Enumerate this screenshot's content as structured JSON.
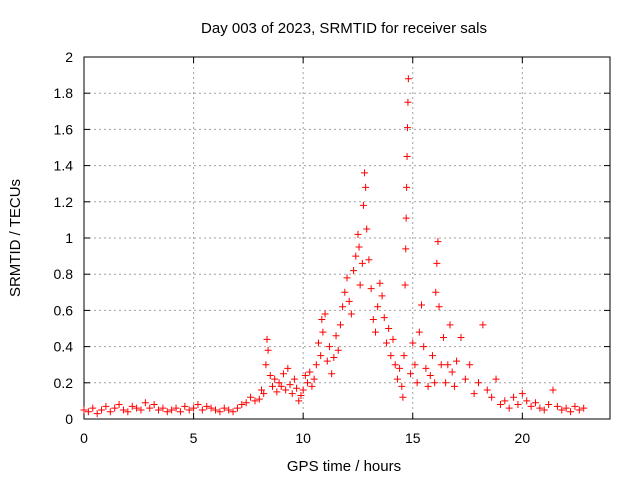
{
  "chart_data": {
    "type": "scatter",
    "title": "Day 003 of 2023, SRMTID for receiver sals",
    "xlabel": "GPS time / hours",
    "ylabel": "SRMTID / TECUs",
    "xlim": [
      0,
      24
    ],
    "ylim": [
      0,
      2
    ],
    "x_ticks": [
      0,
      5,
      10,
      15,
      20
    ],
    "x_tick_labels": [
      "0",
      "5",
      "10",
      "15",
      "20"
    ],
    "y_ticks": [
      0,
      0.2,
      0.4,
      0.6,
      0.8,
      1,
      1.2,
      1.4,
      1.6,
      1.8,
      2
    ],
    "y_tick_labels": [
      "0",
      "0.2",
      "0.4",
      "0.6",
      "0.8",
      "1",
      "1.2",
      "1.4",
      "1.6",
      "1.8",
      "2"
    ],
    "grid": true,
    "marker": "+",
    "marker_color": "#ff0000",
    "series": [
      {
        "name": "SRMTID",
        "points": [
          [
            0.0,
            0.05
          ],
          [
            0.2,
            0.04
          ],
          [
            0.4,
            0.06
          ],
          [
            0.6,
            0.03
          ],
          [
            0.8,
            0.05
          ],
          [
            1.0,
            0.07
          ],
          [
            1.2,
            0.04
          ],
          [
            1.4,
            0.06
          ],
          [
            1.6,
            0.08
          ],
          [
            1.8,
            0.05
          ],
          [
            2.0,
            0.04
          ],
          [
            2.2,
            0.07
          ],
          [
            2.4,
            0.06
          ],
          [
            2.6,
            0.05
          ],
          [
            2.8,
            0.09
          ],
          [
            3.0,
            0.06
          ],
          [
            3.2,
            0.08
          ],
          [
            3.4,
            0.05
          ],
          [
            3.6,
            0.06
          ],
          [
            3.8,
            0.04
          ],
          [
            4.0,
            0.05
          ],
          [
            4.2,
            0.06
          ],
          [
            4.4,
            0.04
          ],
          [
            4.6,
            0.07
          ],
          [
            4.8,
            0.05
          ],
          [
            5.0,
            0.06
          ],
          [
            5.2,
            0.08
          ],
          [
            5.4,
            0.05
          ],
          [
            5.6,
            0.07
          ],
          [
            5.8,
            0.06
          ],
          [
            6.0,
            0.05
          ],
          [
            6.2,
            0.04
          ],
          [
            6.4,
            0.06
          ],
          [
            6.6,
            0.05
          ],
          [
            6.8,
            0.04
          ],
          [
            7.0,
            0.06
          ],
          [
            7.2,
            0.08
          ],
          [
            7.4,
            0.09
          ],
          [
            7.6,
            0.12
          ],
          [
            7.8,
            0.1
          ],
          [
            8.0,
            0.11
          ],
          [
            8.1,
            0.16
          ],
          [
            8.2,
            0.14
          ],
          [
            8.3,
            0.3
          ],
          [
            8.35,
            0.44
          ],
          [
            8.4,
            0.38
          ],
          [
            8.5,
            0.24
          ],
          [
            8.6,
            0.18
          ],
          [
            8.7,
            0.22
          ],
          [
            8.8,
            0.15
          ],
          [
            8.9,
            0.2
          ],
          [
            9.0,
            0.18
          ],
          [
            9.1,
            0.25
          ],
          [
            9.2,
            0.16
          ],
          [
            9.3,
            0.28
          ],
          [
            9.4,
            0.19
          ],
          [
            9.5,
            0.14
          ],
          [
            9.6,
            0.22
          ],
          [
            9.7,
            0.17
          ],
          [
            9.8,
            0.1
          ],
          [
            9.9,
            0.13
          ],
          [
            10.0,
            0.16
          ],
          [
            10.1,
            0.24
          ],
          [
            10.2,
            0.2
          ],
          [
            10.3,
            0.26
          ],
          [
            10.4,
            0.18
          ],
          [
            10.5,
            0.22
          ],
          [
            10.6,
            0.3
          ],
          [
            10.7,
            0.42
          ],
          [
            10.8,
            0.35
          ],
          [
            10.85,
            0.55
          ],
          [
            10.9,
            0.48
          ],
          [
            11.0,
            0.58
          ],
          [
            11.1,
            0.32
          ],
          [
            11.2,
            0.4
          ],
          [
            11.3,
            0.25
          ],
          [
            11.4,
            0.34
          ],
          [
            11.5,
            0.46
          ],
          [
            11.6,
            0.38
          ],
          [
            11.7,
            0.52
          ],
          [
            11.8,
            0.62
          ],
          [
            11.9,
            0.7
          ],
          [
            12.0,
            0.78
          ],
          [
            12.1,
            0.65
          ],
          [
            12.2,
            0.58
          ],
          [
            12.3,
            0.82
          ],
          [
            12.4,
            0.9
          ],
          [
            12.5,
            1.02
          ],
          [
            12.55,
            0.95
          ],
          [
            12.6,
            0.74
          ],
          [
            12.7,
            0.86
          ],
          [
            12.75,
            1.18
          ],
          [
            12.8,
            1.36
          ],
          [
            12.85,
            1.28
          ],
          [
            12.9,
            1.05
          ],
          [
            13.0,
            0.88
          ],
          [
            13.1,
            0.72
          ],
          [
            13.2,
            0.55
          ],
          [
            13.3,
            0.48
          ],
          [
            13.4,
            0.62
          ],
          [
            13.5,
            0.75
          ],
          [
            13.6,
            0.68
          ],
          [
            13.7,
            0.56
          ],
          [
            13.8,
            0.42
          ],
          [
            13.9,
            0.5
          ],
          [
            14.0,
            0.35
          ],
          [
            14.1,
            0.44
          ],
          [
            14.2,
            0.3
          ],
          [
            14.3,
            0.22
          ],
          [
            14.4,
            0.28
          ],
          [
            14.5,
            0.18
          ],
          [
            14.55,
            0.12
          ],
          [
            14.6,
            0.35
          ],
          [
            14.65,
            0.74
          ],
          [
            14.68,
            0.94
          ],
          [
            14.7,
            1.11
          ],
          [
            14.72,
            1.28
          ],
          [
            14.74,
            1.45
          ],
          [
            14.76,
            1.61
          ],
          [
            14.78,
            1.75
          ],
          [
            14.8,
            1.88
          ],
          [
            14.9,
            0.25
          ],
          [
            15.0,
            0.42
          ],
          [
            15.1,
            0.3
          ],
          [
            15.2,
            0.2
          ],
          [
            15.3,
            0.48
          ],
          [
            15.4,
            0.63
          ],
          [
            15.5,
            0.4
          ],
          [
            15.6,
            0.28
          ],
          [
            15.7,
            0.18
          ],
          [
            15.8,
            0.24
          ],
          [
            15.9,
            0.35
          ],
          [
            16.0,
            0.2
          ],
          [
            16.05,
            0.7
          ],
          [
            16.1,
            0.86
          ],
          [
            16.15,
            0.98
          ],
          [
            16.2,
            0.62
          ],
          [
            16.3,
            0.3
          ],
          [
            16.4,
            0.45
          ],
          [
            16.5,
            0.2
          ],
          [
            16.6,
            0.3
          ],
          [
            16.7,
            0.52
          ],
          [
            16.8,
            0.26
          ],
          [
            16.9,
            0.18
          ],
          [
            17.0,
            0.32
          ],
          [
            17.2,
            0.45
          ],
          [
            17.4,
            0.22
          ],
          [
            17.6,
            0.3
          ],
          [
            17.8,
            0.14
          ],
          [
            18.0,
            0.2
          ],
          [
            18.2,
            0.52
          ],
          [
            18.4,
            0.16
          ],
          [
            18.6,
            0.12
          ],
          [
            18.8,
            0.22
          ],
          [
            19.0,
            0.08
          ],
          [
            19.2,
            0.1
          ],
          [
            19.4,
            0.06
          ],
          [
            19.6,
            0.12
          ],
          [
            19.8,
            0.08
          ],
          [
            20.0,
            0.14
          ],
          [
            20.2,
            0.1
          ],
          [
            20.4,
            0.07
          ],
          [
            20.6,
            0.09
          ],
          [
            20.8,
            0.06
          ],
          [
            21.0,
            0.05
          ],
          [
            21.2,
            0.08
          ],
          [
            21.4,
            0.16
          ],
          [
            21.6,
            0.07
          ],
          [
            21.8,
            0.05
          ],
          [
            22.0,
            0.06
          ],
          [
            22.2,
            0.04
          ],
          [
            22.4,
            0.07
          ],
          [
            22.6,
            0.05
          ],
          [
            22.8,
            0.06
          ]
        ]
      }
    ]
  }
}
